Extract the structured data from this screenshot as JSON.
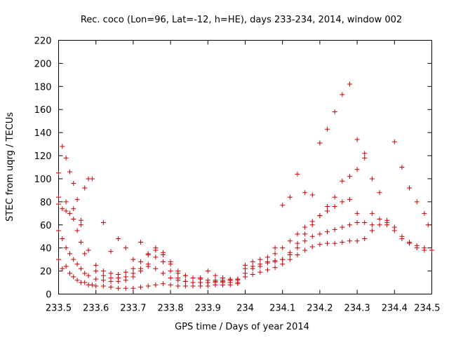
{
  "chart_data": {
    "type": "scatter",
    "title": "Rec. coco (Lon=96, Lat=-12, h=HE), days 233-234, 2014, window 002",
    "xlabel": "GPS time / Days of year 2014",
    "ylabel": "STEC from uqrg / TECUs",
    "xlim": [
      233.5,
      234.5
    ],
    "ylim": [
      0,
      220
    ],
    "xticks": [
      233.5,
      233.6,
      233.7,
      233.8,
      233.9,
      234,
      234.1,
      234.2,
      234.3,
      234.4,
      234.5
    ],
    "xtick_labels": [
      "233.5",
      "233.6",
      "233.7",
      "233.8",
      "233.9",
      "234",
      "234.1",
      "234.2",
      "234.3",
      "234.4",
      "234.5"
    ],
    "yticks": [
      0,
      20,
      40,
      60,
      80,
      100,
      120,
      140,
      160,
      180,
      200,
      220
    ],
    "ytick_labels": [
      "0",
      "20",
      "40",
      "60",
      "80",
      "100",
      "120",
      "140",
      "160",
      "180",
      "200",
      "220"
    ],
    "grid": false,
    "marker": "plus",
    "marker_color": "#cc0000",
    "series": [
      {
        "x": [
          233.5,
          233.51,
          233.52,
          233.53,
          233.54,
          233.55,
          233.56,
          233.57,
          233.58,
          233.59,
          233.6,
          233.62,
          233.64,
          233.66,
          233.68,
          233.7,
          233.72,
          233.74,
          233.76,
          233.78,
          233.8,
          233.82,
          233.84,
          233.86,
          233.88,
          233.9,
          233.92,
          233.94,
          233.96,
          233.98,
          234,
          234.02,
          234.04,
          234.06,
          234.08,
          234.1,
          234.12,
          234.14,
          234.16,
          234.18,
          234.2,
          234.22,
          234.24,
          234.26,
          234.28,
          234.3,
          234.32,
          234.34,
          234.36,
          234.38,
          234.4,
          234.42,
          234.44,
          234.46,
          234.48,
          234.5
        ],
        "y": [
          30,
          22,
          24,
          18,
          15,
          12,
          10,
          10,
          8,
          8,
          7,
          7,
          6,
          5,
          5,
          5,
          6,
          7,
          8,
          9,
          8,
          7,
          7,
          7,
          7,
          7,
          8,
          8,
          8,
          9,
          15,
          17,
          19,
          21,
          23,
          26,
          30,
          34,
          38,
          41,
          43,
          44,
          44,
          45,
          46,
          46,
          48,
          55,
          60,
          62,
          58,
          50,
          45,
          40,
          38,
          38
        ]
      },
      {
        "x": [
          233.5,
          233.51,
          233.52,
          233.53,
          233.54,
          233.55,
          233.56,
          233.57,
          233.58,
          233.6,
          233.62,
          233.64,
          233.66,
          233.68,
          233.7,
          233.72,
          233.74,
          233.76,
          233.78,
          233.8,
          233.82,
          233.84,
          233.86,
          233.88,
          233.9,
          233.92,
          233.94,
          233.96,
          233.98,
          234,
          234.02,
          234.04,
          234.06,
          234.08,
          234.1,
          234.12,
          234.14,
          234.16,
          234.18,
          234.2,
          234.22,
          234.24,
          234.26,
          234.28,
          234.3,
          234.32,
          234.34
        ],
        "y": [
          55,
          48,
          40,
          35,
          30,
          26,
          22,
          18,
          16,
          13,
          12,
          11,
          11,
          12,
          15,
          20,
          26,
          32,
          28,
          20,
          14,
          11,
          10,
          10,
          10,
          11,
          11,
          12,
          13,
          22,
          24,
          26,
          28,
          29,
          30,
          34,
          40,
          46,
          50,
          52,
          54,
          56,
          58,
          60,
          62,
          62,
          60
        ]
      },
      {
        "x": [
          233.5,
          233.51,
          233.52,
          233.53,
          233.54,
          233.55,
          233.56,
          233.57,
          233.6,
          233.62,
          233.64,
          233.66,
          233.68,
          233.7,
          233.72,
          233.74,
          233.76,
          233.78,
          233.8,
          233.82,
          233.84,
          233.86,
          233.88,
          233.9,
          233.92,
          233.94,
          233.96,
          233.98,
          234,
          234.02,
          234.04,
          234.06,
          234.08,
          234.1,
          234.12,
          234.14,
          234.16,
          234.18,
          234.2,
          234.22,
          234.24,
          234.26,
          234.28,
          234.3
        ],
        "y": [
          78,
          74,
          72,
          70,
          65,
          55,
          45,
          35,
          25,
          20,
          18,
          17,
          19,
          22,
          28,
          34,
          38,
          34,
          26,
          20,
          16,
          14,
          13,
          12,
          12,
          12,
          12,
          13,
          25,
          28,
          30,
          32,
          35,
          40,
          46,
          52,
          58,
          63,
          68,
          72,
          76,
          80,
          82,
          70
        ]
      },
      {
        "x": [
          233.5,
          233.51,
          233.52,
          233.53,
          233.54,
          233.55,
          233.56,
          233.57,
          233.58,
          233.59,
          233.62,
          233.64,
          233.66,
          233.68,
          233.7,
          233.72,
          233.74,
          233.76,
          233.78,
          233.8,
          233.82,
          233.84,
          233.86,
          233.88,
          233.9,
          233.92,
          233.94,
          233.96,
          233.98,
          234.08,
          234.1,
          234.12,
          234.14,
          234.16,
          234.18,
          234.2,
          234.22,
          234.24,
          234.26,
          234.28,
          234.3,
          234.32,
          234.34,
          234.36,
          234.38,
          234.4,
          234.42,
          234.44,
          234.46,
          234.48,
          234.49
        ],
        "y": [
          105,
          128,
          118,
          106,
          96,
          82,
          64,
          92,
          100,
          100,
          62,
          37,
          48,
          40,
          30,
          45,
          35,
          40,
          36,
          28,
          18,
          16,
          14,
          14,
          20,
          16,
          14,
          13,
          12,
          40,
          77,
          84,
          104,
          88,
          86,
          131,
          143,
          158,
          173,
          182,
          134,
          122,
          70,
          65,
          60,
          132,
          110,
          92,
          80,
          70,
          60
        ]
      },
      {
        "x": [
          233.5,
          233.52,
          233.54,
          233.56,
          233.58,
          233.6,
          233.62,
          233.64,
          233.66,
          233.68,
          233.7,
          233.72,
          233.74,
          233.76,
          233.78,
          233.8,
          233.82,
          233.84,
          233.86,
          233.88,
          233.9,
          233.92,
          233.94,
          233.96,
          233.98,
          234,
          234.02,
          234.04,
          234.06,
          234.08,
          234.1,
          234.12,
          234.14,
          234.16,
          234.18,
          234.2,
          234.22,
          234.24,
          234.26,
          234.28,
          234.3,
          234.32,
          234.34,
          234.36,
          234.38,
          234.4,
          234.42,
          234.44,
          234.46,
          234.48,
          234.5
        ],
        "y": [
          84,
          80,
          74,
          60,
          38,
          20,
          16,
          14,
          14,
          15,
          18,
          22,
          24,
          22,
          18,
          14,
          12,
          11,
          10,
          10,
          10,
          10,
          10,
          10,
          10,
          18,
          22,
          24,
          27,
          28,
          30,
          36,
          44,
          52,
          60,
          68,
          76,
          84,
          98,
          102,
          108,
          118,
          100,
          88,
          64,
          55,
          48,
          44,
          42,
          40,
          38
        ]
      }
    ]
  }
}
